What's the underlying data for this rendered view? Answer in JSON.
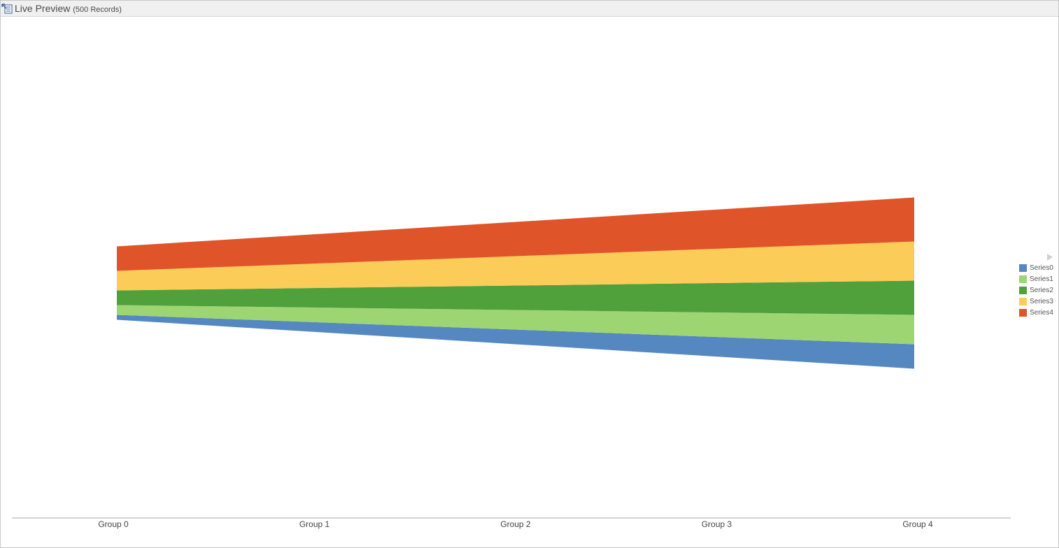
{
  "header": {
    "title": "Live Preview",
    "record_count": "(500 Records)",
    "icon": "preview-icon"
  },
  "chart_data": {
    "type": "area",
    "stacked": true,
    "baseline": "centered",
    "categories": [
      "Group 0",
      "Group 1",
      "Group 2",
      "Group 3",
      "Group 4"
    ],
    "series": [
      {
        "name": "Series0",
        "values": [
          1.0,
          2.0,
          3.0,
          4.0,
          5.0
        ],
        "color": "#5588c0"
      },
      {
        "name": "Series1",
        "values": [
          2.0,
          3.0,
          4.0,
          5.0,
          6.0
        ],
        "color": "#9ed573"
      },
      {
        "name": "Series2",
        "values": [
          3.0,
          4.0,
          5.0,
          6.0,
          7.0
        ],
        "color": "#50a03c"
      },
      {
        "name": "Series3",
        "values": [
          4.0,
          5.0,
          6.0,
          7.0,
          8.0
        ],
        "color": "#fccc58"
      },
      {
        "name": "Series4",
        "values": [
          5.0,
          6.0,
          7.0,
          8.0,
          9.0
        ],
        "color": "#e0542a"
      }
    ],
    "legend_position": "right",
    "grid": false
  }
}
